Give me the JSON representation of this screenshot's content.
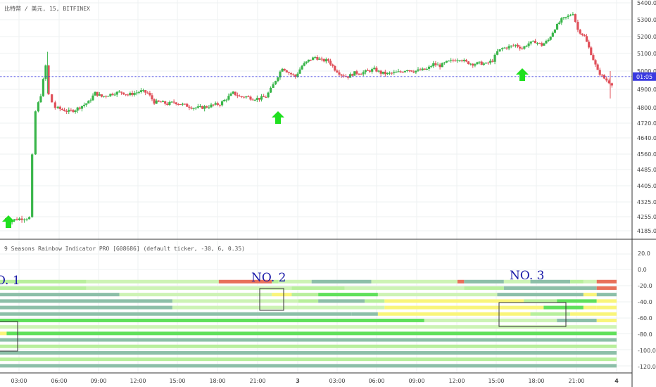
{
  "main_chart": {
    "symbol_label": "比特幣 / 美元, 15, BITFINEX",
    "price_axis_ticks": [
      4185,
      4255,
      4325,
      4405,
      4485,
      4560,
      4640,
      4720,
      4800,
      4900,
      5000,
      5100,
      5200,
      5300,
      5400
    ],
    "price_tick_labels": [
      "4185.0",
      "4255.0",
      "4325.0",
      "4405.0",
      "4485.0",
      "4560.0",
      "4640.0",
      "4720.0",
      "4800.0",
      "4900.0",
      "5000.0",
      "5100.0",
      "5200.0",
      "5300.0",
      "5400.0"
    ],
    "current_price": 4970,
    "current_price_label": "01:05",
    "colors": {
      "up": "#39b54a",
      "down": "#e0505a",
      "price_line": "#3a3ae0",
      "arrow": "#1fe01f"
    }
  },
  "chart_data": [
    {
      "type": "candlestick",
      "description_free": true,
      "x_ticks": [
        "03:00",
        "06:00",
        "09:00",
        "12:00",
        "15:00",
        "18:00",
        "21:00",
        "3",
        "03:00",
        "06:00",
        "09:00",
        "12:00",
        "15:00",
        "18:00",
        "21:00",
        "4"
      ],
      "close_path": [
        [
          0.0,
          4240
        ],
        [
          2.0,
          4235
        ],
        [
          5.0,
          4245
        ],
        [
          8.0,
          4250
        ],
        [
          9.0,
          4550
        ],
        [
          10.0,
          4780
        ],
        [
          11.5,
          4870
        ],
        [
          13.0,
          5030
        ],
        [
          14.0,
          4870
        ],
        [
          15.0,
          4830
        ],
        [
          16.0,
          4800
        ],
        [
          18.0,
          4790
        ],
        [
          20.0,
          4780
        ],
        [
          22.0,
          4790
        ],
        [
          24.0,
          4810
        ],
        [
          26.0,
          4830
        ],
        [
          28.0,
          4880
        ],
        [
          30.0,
          4860
        ],
        [
          32.0,
          4870
        ],
        [
          34.0,
          4880
        ],
        [
          36.0,
          4885
        ],
        [
          38.0,
          4870
        ],
        [
          40.0,
          4880
        ],
        [
          42.0,
          4890
        ],
        [
          44.0,
          4880
        ],
        [
          46.0,
          4830
        ],
        [
          48.0,
          4830
        ],
        [
          50.0,
          4820
        ],
        [
          52.0,
          4830
        ],
        [
          54.0,
          4820
        ],
        [
          56.0,
          4810
        ],
        [
          58.0,
          4800
        ],
        [
          60.0,
          4800
        ],
        [
          62.0,
          4805
        ],
        [
          64.0,
          4815
        ],
        [
          66.0,
          4820
        ],
        [
          68.0,
          4850
        ],
        [
          70.0,
          4880
        ],
        [
          72.0,
          4860
        ],
        [
          74.0,
          4860
        ],
        [
          76.0,
          4850
        ],
        [
          78.0,
          4850
        ],
        [
          80.0,
          4860
        ],
        [
          81.5,
          4900
        ],
        [
          83.0,
          4950
        ],
        [
          85.0,
          5020
        ],
        [
          87.0,
          4990
        ],
        [
          89.0,
          4970
        ],
        [
          91.0,
          5030
        ],
        [
          93.0,
          5060
        ],
        [
          95.0,
          5080
        ],
        [
          97.0,
          5060
        ],
        [
          99.0,
          5060
        ],
        [
          101.0,
          5010
        ],
        [
          103.0,
          4980
        ],
        [
          105.0,
          4970
        ],
        [
          107.0,
          4990
        ],
        [
          109.0,
          4990
        ],
        [
          111.0,
          5000
        ],
        [
          113.0,
          5010
        ],
        [
          115.0,
          4990
        ],
        [
          117.0,
          4985
        ],
        [
          119.0,
          4990
        ],
        [
          121.0,
          4995
        ],
        [
          123.0,
          5010
        ],
        [
          125.0,
          5000
        ],
        [
          127.0,
          5005
        ],
        [
          129.0,
          5010
        ],
        [
          131.0,
          5040
        ],
        [
          133.0,
          5030
        ],
        [
          135.0,
          5050
        ],
        [
          137.0,
          5060
        ],
        [
          139.0,
          5070
        ],
        [
          141.0,
          5050
        ],
        [
          143.0,
          5040
        ],
        [
          145.0,
          5045
        ],
        [
          147.0,
          5040
        ],
        [
          149.0,
          5060
        ],
        [
          150.5,
          5110
        ],
        [
          152.0,
          5130
        ],
        [
          154.0,
          5140
        ],
        [
          156.0,
          5150
        ],
        [
          158.0,
          5130
        ],
        [
          160.0,
          5160
        ],
        [
          162.0,
          5170
        ],
        [
          164.0,
          5150
        ],
        [
          166.0,
          5180
        ],
        [
          168.0,
          5250
        ],
        [
          170.0,
          5300
        ],
        [
          172.0,
          5320
        ],
        [
          173.5,
          5340
        ],
        [
          175.0,
          5240
        ],
        [
          177.0,
          5200
        ],
        [
          179.0,
          5100
        ],
        [
          181.0,
          5000
        ],
        [
          183.0,
          4960
        ],
        [
          184.5,
          4940
        ],
        [
          185.5,
          4930
        ]
      ]
    },
    {
      "type": "heatmap",
      "title": "9 Seasons Rainbow Indicator PRO [G08686] (default ticker, -30, 6, 0.35)",
      "y_ticks": [
        20,
        0,
        -20,
        -40,
        -60,
        -80,
        -100,
        -120
      ],
      "y_tick_labels": [
        "20.0",
        "0.0",
        "-20.0",
        "-40.0",
        "-60.0",
        "-80.0",
        "-100.0",
        "-120.0"
      ],
      "rows": [
        {
          "level": -15,
          "segments": [
            [
              0,
              0.13,
              "lgreen"
            ],
            [
              0.13,
              0.33,
              "pale"
            ],
            [
              0.33,
              0.41,
              "red"
            ],
            [
              0.41,
              0.42,
              "lgreen"
            ],
            [
              0.42,
              0.47,
              "pale"
            ],
            [
              0.47,
              0.56,
              "grey"
            ],
            [
              0.56,
              0.69,
              "pale"
            ],
            [
              0.69,
              0.7,
              "red"
            ],
            [
              0.7,
              0.76,
              "grey"
            ],
            [
              0.76,
              0.8,
              "pale"
            ],
            [
              0.8,
              0.86,
              "grey"
            ],
            [
              0.86,
              0.88,
              "lgreen"
            ],
            [
              0.88,
              0.9,
              "pale"
            ],
            [
              0.9,
              0.93,
              "red"
            ]
          ]
        },
        {
          "level": -23,
          "segments": [
            [
              0,
              0.13,
              "lgreen"
            ],
            [
              0.13,
              0.4,
              "pale"
            ],
            [
              0.4,
              0.44,
              "pale"
            ],
            [
              0.44,
              0.52,
              "lgreen"
            ],
            [
              0.52,
              0.7,
              "pale"
            ],
            [
              0.7,
              0.76,
              "lgreen"
            ],
            [
              0.76,
              0.9,
              "grey"
            ],
            [
              0.9,
              0.93,
              "red"
            ]
          ]
        },
        {
          "level": -31,
          "segments": [
            [
              0,
              0.18,
              "grey"
            ],
            [
              0.18,
              0.41,
              "pale"
            ],
            [
              0.41,
              0.44,
              "yellow"
            ],
            [
              0.44,
              0.48,
              "lgreen"
            ],
            [
              0.48,
              0.57,
              "green"
            ],
            [
              0.57,
              0.75,
              "pale"
            ],
            [
              0.75,
              0.88,
              "grey"
            ],
            [
              0.88,
              0.9,
              "yellow"
            ],
            [
              0.9,
              0.93,
              "grey"
            ]
          ]
        },
        {
          "level": -39,
          "segments": [
            [
              0,
              0.26,
              "grey"
            ],
            [
              0.26,
              0.45,
              "pale"
            ],
            [
              0.45,
              0.48,
              "lgreen"
            ],
            [
              0.48,
              0.55,
              "grey"
            ],
            [
              0.55,
              0.58,
              "lgreen"
            ],
            [
              0.58,
              0.79,
              "yellow"
            ],
            [
              0.79,
              0.84,
              "lgreen"
            ],
            [
              0.84,
              0.9,
              "green"
            ],
            [
              0.9,
              0.93,
              "yellow"
            ]
          ]
        },
        {
          "level": -47,
          "segments": [
            [
              0,
              0.26,
              "grey"
            ],
            [
              0.26,
              0.58,
              "pale"
            ],
            [
              0.58,
              0.82,
              "yellow"
            ],
            [
              0.82,
              0.88,
              "green"
            ],
            [
              0.88,
              0.9,
              "yellow"
            ],
            [
              0.9,
              0.93,
              "yellow"
            ]
          ]
        },
        {
          "level": -55,
          "segments": [
            [
              0,
              0.53,
              "grey"
            ],
            [
              0.53,
              0.57,
              "grey"
            ],
            [
              0.57,
              0.8,
              "yellow"
            ],
            [
              0.8,
              0.86,
              "lgreen"
            ],
            [
              0.86,
              0.93,
              "yellow"
            ]
          ]
        },
        {
          "level": -63,
          "segments": [
            [
              0,
              0.64,
              "green"
            ],
            [
              0.64,
              0.84,
              "pale"
            ],
            [
              0.84,
              0.9,
              "grey"
            ],
            [
              0.9,
              0.93,
              "yellow"
            ]
          ]
        },
        {
          "level": -71,
          "segments": [
            [
              0,
              0.93,
              "pale"
            ]
          ]
        },
        {
          "level": -79,
          "segments": [
            [
              0,
              0.01,
              "yellow"
            ],
            [
              0.01,
              0.93,
              "green"
            ]
          ]
        },
        {
          "level": -87,
          "segments": [
            [
              0,
              0.93,
              "grey"
            ]
          ]
        },
        {
          "level": -95,
          "segments": [
            [
              0,
              0.93,
              "lgreen"
            ]
          ]
        },
        {
          "level": -103,
          "segments": [
            [
              0,
              0.93,
              "grey"
            ]
          ]
        },
        {
          "level": -111,
          "segments": [
            [
              0,
              0.93,
              "lgreen"
            ]
          ]
        },
        {
          "level": -119,
          "segments": [
            [
              0,
              0.93,
              "grey"
            ]
          ]
        }
      ],
      "palette": {
        "grey": "#8cbfa8",
        "pale": "#cdf3b5",
        "lgreen": "#b8ef9c",
        "green": "#5fe05a",
        "yellow": "#f9f57a",
        "red": "#e8705a"
      }
    }
  ],
  "annotations": {
    "box1_label": "O. 1",
    "box2_label": "NO. 2",
    "box3_label": "NO. 3"
  }
}
